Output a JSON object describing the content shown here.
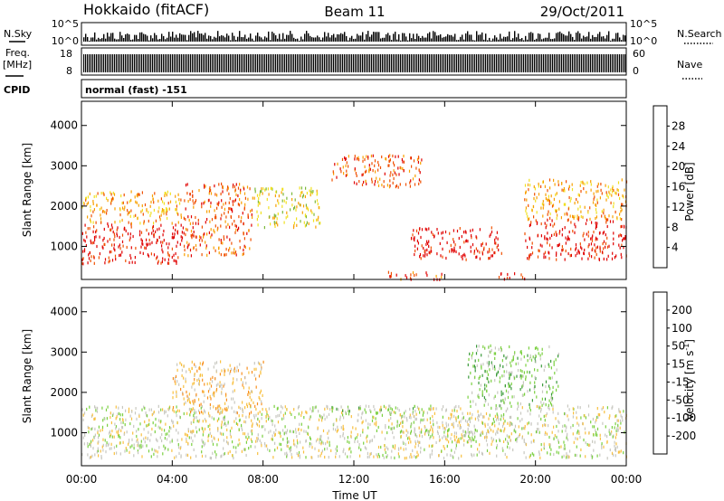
{
  "header": {
    "title": "Hokkaido (fitACF)",
    "beam": "Beam 11",
    "date": "29/Oct/2011"
  },
  "params": {
    "nsky_label": "N.Sky",
    "nsky_ticks": [
      "10^5",
      "10^0"
    ],
    "nsky_right_ticks": [
      "10^5",
      "10^0"
    ],
    "nsearch_label": "N.Search",
    "freq_label_1": "Freq.",
    "freq_label_2": "[MHz]",
    "freq_ticks": [
      "18",
      "8"
    ],
    "nave_ticks": [
      "60",
      "0"
    ],
    "nave_label": "Nave",
    "cpid_label": "CPID",
    "cpid_value": "normal (fast) -151"
  },
  "chart_data": [
    {
      "type": "heatmap",
      "panel": "power",
      "ylabel": "Slant Range [km]",
      "xlabel": "",
      "x_ticks": [
        "00:00",
        "04:00",
        "08:00",
        "12:00",
        "16:00",
        "20:00",
        "00:00"
      ],
      "x_range_hours": [
        0,
        24
      ],
      "y_ticks": [
        1000,
        2000,
        3000,
        4000
      ],
      "ylim_km": [
        180,
        4600
      ],
      "colorbar": {
        "label": "Power [dB]",
        "ticks": [
          "4",
          "8",
          "12",
          "16",
          "20",
          "24",
          "28"
        ],
        "colors": [
          "#0000ff",
          "#1f3fbf",
          "#3a7a5a",
          "#7ab83a",
          "#f0e020",
          "#f8a000",
          "#f05000",
          "#e00000"
        ]
      },
      "regions": [
        {
          "t0": 0.0,
          "t1": 4.5,
          "r0": 600,
          "r1": 1600,
          "level": 7
        },
        {
          "t0": 0.0,
          "t1": 4.5,
          "r0": 1600,
          "r1": 2400,
          "level": 5
        },
        {
          "t0": 4.5,
          "t1": 7.5,
          "r0": 800,
          "r1": 2600,
          "level": 6
        },
        {
          "t0": 7.5,
          "t1": 10.5,
          "r0": 1500,
          "r1": 2500,
          "level": 4
        },
        {
          "t0": 11.0,
          "t1": 15.0,
          "r0": 2500,
          "r1": 3300,
          "level": 6
        },
        {
          "t0": 14.5,
          "t1": 18.5,
          "r0": 700,
          "r1": 1500,
          "level": 7
        },
        {
          "t0": 19.5,
          "t1": 24.0,
          "r0": 700,
          "r1": 1700,
          "level": 7
        },
        {
          "t0": 19.5,
          "t1": 24.0,
          "r0": 1700,
          "r1": 2700,
          "level": 5
        },
        {
          "t0": 13.5,
          "t1": 16.0,
          "r0": 200,
          "r1": 400,
          "level": 6
        },
        {
          "t0": 18.3,
          "t1": 19.5,
          "r0": 200,
          "r1": 400,
          "level": 7
        }
      ]
    },
    {
      "type": "heatmap",
      "panel": "velocity",
      "ylabel": "Slant Range [km]",
      "xlabel": "Time UT",
      "x_ticks": [
        "00:00",
        "04:00",
        "08:00",
        "12:00",
        "16:00",
        "20:00",
        "00:00"
      ],
      "x_range_hours": [
        0,
        24
      ],
      "y_ticks": [
        1000,
        2000,
        3000,
        4000
      ],
      "ylim_km": [
        180,
        4600
      ],
      "colorbar": {
        "label": "Velocity [m s^-1]",
        "ticks": [
          "200",
          "100",
          "50",
          "15",
          "-15",
          "-50",
          "-100",
          "-200"
        ],
        "colors": [
          "#2030c0",
          "#1f6f5f",
          "#3a9a3a",
          "#7ad040",
          "#c8c8c0",
          "#f8c040",
          "#f89020",
          "#f05000",
          "#e00000"
        ]
      },
      "regions": [
        {
          "t0": 0.0,
          "t1": 24.0,
          "r0": 400,
          "r1": 1700,
          "level": 4
        },
        {
          "t0": 14.0,
          "t1": 19.0,
          "r0": 800,
          "r1": 1500,
          "level": 4
        },
        {
          "t0": 17.0,
          "t1": 21.0,
          "r0": 1700,
          "r1": 3200,
          "level": 3
        },
        {
          "t0": 11.0,
          "t1": 15.0,
          "r0": 1500,
          "r1": 1700,
          "level": 3
        },
        {
          "t0": 4.0,
          "t1": 8.0,
          "r0": 1500,
          "r1": 2800,
          "level": 5
        }
      ]
    }
  ]
}
